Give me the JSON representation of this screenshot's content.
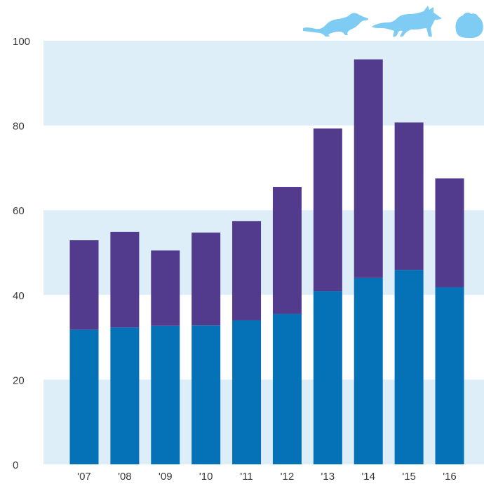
{
  "chart_data": {
    "type": "bar",
    "stacked": true,
    "categories": [
      "'07",
      "'08",
      "'09",
      "'10",
      "'11",
      "'12",
      "'13",
      "'14",
      "'15",
      "'16"
    ],
    "series": [
      {
        "values": [
          31.8,
          32.3,
          32.7,
          32.8,
          34.0,
          35.5,
          40.9,
          44.0,
          45.9,
          41.8
        ]
      },
      {
        "values": [
          21.1,
          22.6,
          17.8,
          21.9,
          23.4,
          30.0,
          38.4,
          51.6,
          34.8,
          25.7
        ]
      }
    ],
    "colors": {
      "series_0": "#0572b8",
      "series_1": "#523a8d",
      "band": "#ddeef8",
      "icon": "#7ecbf3"
    },
    "title": "",
    "xlabel": "",
    "ylabel": "",
    "ylim": [
      0,
      100
    ],
    "yticks": [
      0,
      20,
      40,
      60,
      80,
      100
    ],
    "grid": "alternating horizontal bands",
    "legend": "animal silhouette icons, top-right",
    "legend_icons": [
      "weasel-icon",
      "fox-icon",
      "small-furry-animal-icon"
    ]
  }
}
